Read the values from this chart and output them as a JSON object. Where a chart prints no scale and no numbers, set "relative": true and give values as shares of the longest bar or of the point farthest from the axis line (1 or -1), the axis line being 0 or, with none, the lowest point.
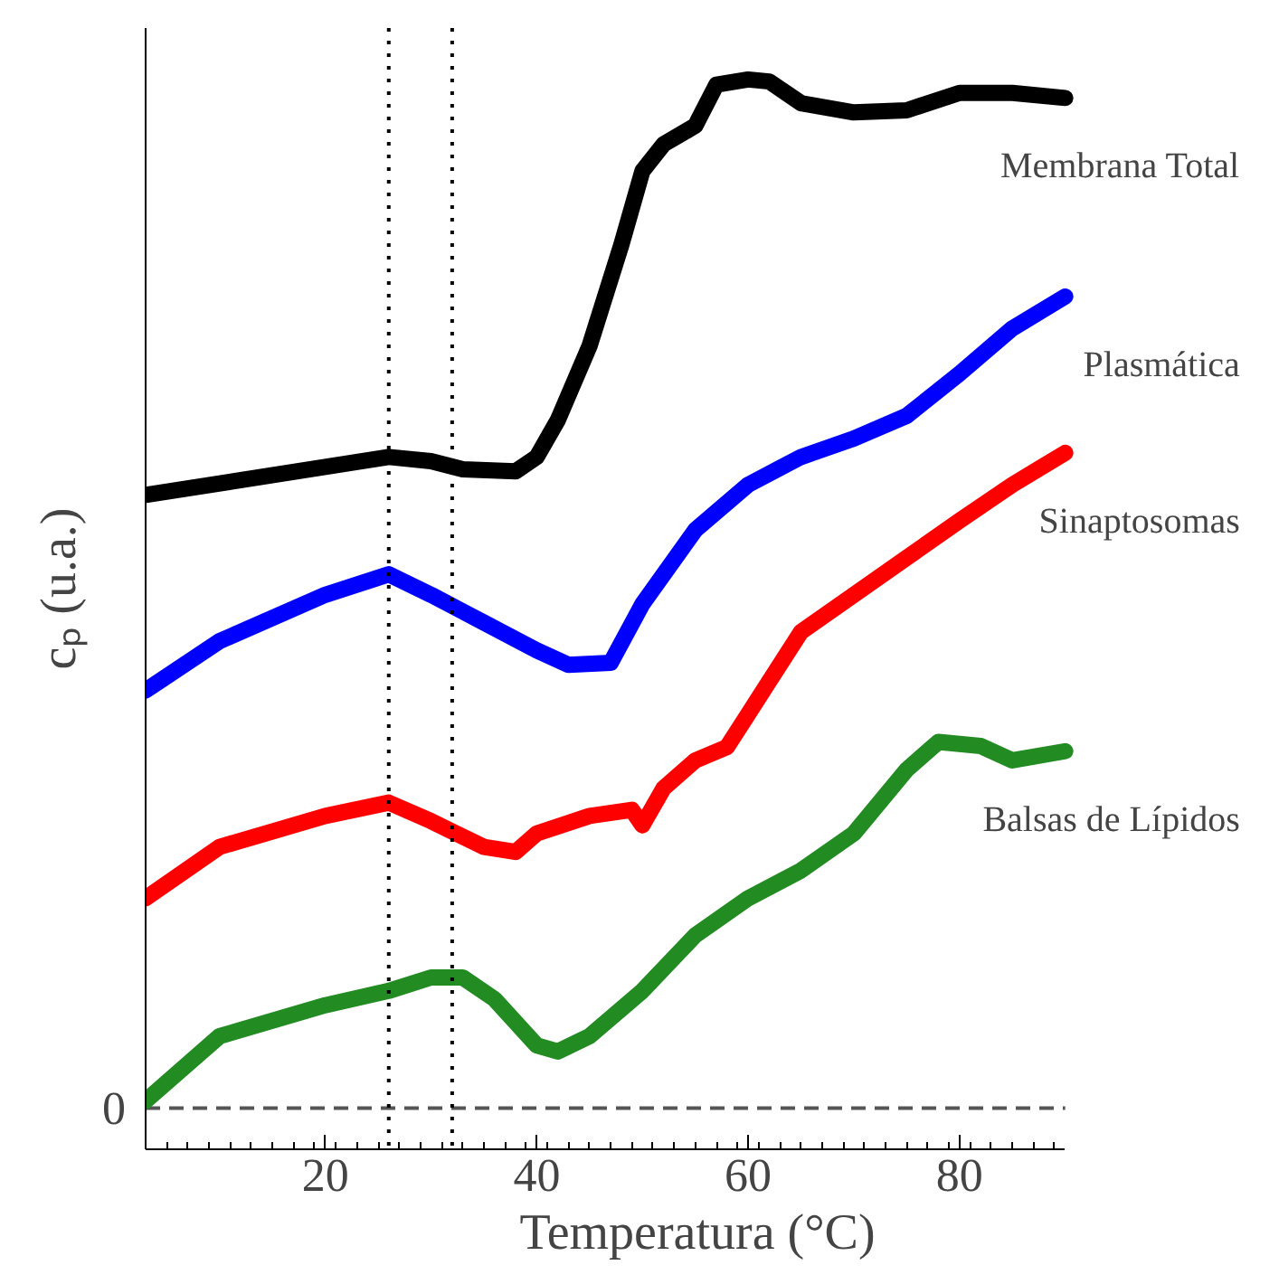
{
  "chart_data": {
    "type": "line",
    "relative": true,
    "xlabel": "Temperatura (°C)",
    "ylabel": "cₚ (u.a.)",
    "xlim": [
      3,
      90
    ],
    "xticks": [
      20,
      40,
      60,
      80
    ],
    "grid": false,
    "marker": "none",
    "line_style": "solid",
    "series": [
      {
        "name": "Membrana Total",
        "color": "#000000",
        "x": [
          3,
          26,
          30,
          33,
          38,
          40,
          42,
          45,
          48,
          50,
          52,
          55,
          57,
          60,
          62,
          65,
          70,
          75,
          80,
          85,
          90
        ],
        "values": [
          0.596,
          0.633,
          0.629,
          0.621,
          0.619,
          0.633,
          0.669,
          0.741,
          0.839,
          0.911,
          0.937,
          0.955,
          0.995,
          1.0,
          0.998,
          0.977,
          0.968,
          0.97,
          0.987,
          0.987,
          0.982
        ]
      },
      {
        "name": "Plasmática",
        "color": "#0000ff",
        "x": [
          3,
          10,
          20,
          26,
          30,
          35,
          40,
          43,
          47,
          50,
          55,
          60,
          65,
          70,
          75,
          80,
          85,
          90
        ],
        "values": [
          0.406,
          0.454,
          0.499,
          0.519,
          0.499,
          0.472,
          0.445,
          0.431,
          0.433,
          0.49,
          0.562,
          0.606,
          0.633,
          0.651,
          0.673,
          0.714,
          0.758,
          0.789
        ]
      },
      {
        "name": "Sinaptosomas",
        "color": "#ff0000",
        "x": [
          3,
          10,
          20,
          26,
          30,
          35,
          38,
          40,
          45,
          49,
          50,
          52,
          55,
          58,
          60,
          65,
          70,
          75,
          80,
          85,
          90
        ],
        "values": [
          0.204,
          0.254,
          0.284,
          0.297,
          0.279,
          0.254,
          0.249,
          0.267,
          0.284,
          0.29,
          0.275,
          0.311,
          0.338,
          0.351,
          0.383,
          0.463,
          0.499,
          0.535,
          0.571,
          0.606,
          0.637
        ]
      },
      {
        "name": "Balsas de Lípidos",
        "color": "#228b22",
        "x": [
          3,
          10,
          20,
          26,
          30,
          33,
          36,
          40,
          42,
          45,
          50,
          55,
          60,
          65,
          70,
          75,
          78,
          82,
          85,
          90
        ],
        "values": [
          0.007,
          0.07,
          0.1,
          0.114,
          0.127,
          0.127,
          0.106,
          0.061,
          0.055,
          0.07,
          0.114,
          0.168,
          0.204,
          0.231,
          0.267,
          0.329,
          0.356,
          0.352,
          0.338,
          0.347
        ]
      }
    ],
    "ref_lines": [
      {
        "axis": "y",
        "value": 0,
        "label": "0",
        "line_style": "dashed",
        "color": "#555555"
      },
      {
        "axis": "x",
        "value": 26,
        "label": null,
        "line_style": "dotted",
        "color": "#000000"
      },
      {
        "axis": "x",
        "value": 32,
        "label": null,
        "line_style": "dotted",
        "color": "#000000"
      }
    ]
  }
}
